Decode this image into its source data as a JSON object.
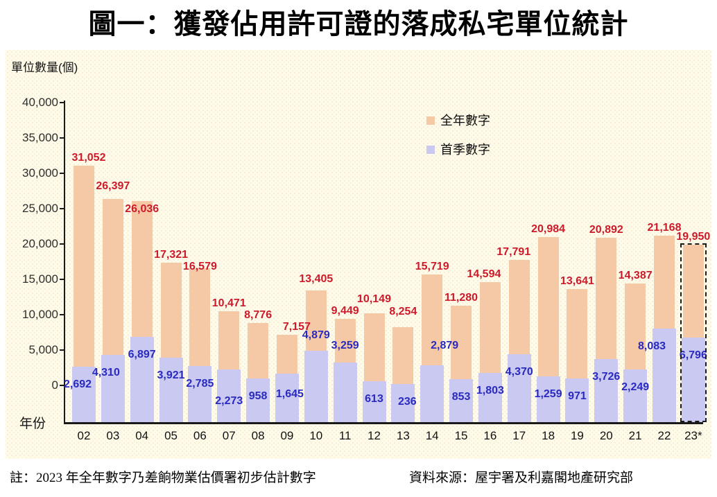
{
  "page": {
    "title": "圖一：獲發佔用許可證的落成私宅單位統計"
  },
  "chart_data": {
    "type": "bar",
    "title": "圖一：獲發佔用許可證的落成私宅單位統計",
    "ylabel": "單位數量(個)",
    "xlabel": "年份",
    "ylim": [
      0,
      40000
    ],
    "ytick_values": [
      0,
      5000,
      10000,
      15000,
      20000,
      25000,
      30000,
      35000,
      40000
    ],
    "grid": false,
    "legend_position": "inside-top-right",
    "categories": [
      "02",
      "03",
      "04",
      "05",
      "06",
      "07",
      "08",
      "09",
      "10",
      "11",
      "12",
      "13",
      "14",
      "15",
      "16",
      "17",
      "18",
      "19",
      "20",
      "21",
      "22",
      "23*"
    ],
    "series": [
      {
        "name": "全年數字",
        "color": "#f5c9a6",
        "label_color": "#cc1a2b",
        "values": [
          31052,
          26397,
          26036,
          17321,
          16579,
          10471,
          8776,
          7157,
          13405,
          9449,
          10149,
          8254,
          15719,
          11280,
          14594,
          17791,
          20984,
          13641,
          20892,
          14387,
          21168,
          19950
        ]
      },
      {
        "name": "首季數字",
        "color": "#c9c9f2",
        "label_color": "#2a2abe",
        "values": [
          2692,
          4310,
          6897,
          3921,
          2785,
          2273,
          958,
          1645,
          4879,
          3259,
          613,
          236,
          2879,
          853,
          1803,
          4370,
          1259,
          971,
          3726,
          2249,
          8083,
          6796
        ]
      }
    ],
    "estimated_bar": {
      "category": "23*",
      "index": 21,
      "style": "dashed-outline"
    },
    "label_offsets": {
      "full_year": {
        "0": [
          7,
          0
        ],
        "1": [
          0,
          -7
        ],
        "2": [
          0,
          23
        ],
        "4": [
          0,
          9
        ],
        "7": [
          14,
          0
        ],
        "8": [
          0,
          -5
        ],
        "10": [
          0,
          -9
        ],
        "11": [
          0,
          -11
        ],
        "14": [
          -9,
          0
        ],
        "15": [
          -8,
          0
        ]
      },
      "first_quarter": {
        "0": [
          -9,
          0
        ],
        "1": [
          -10,
          0
        ],
        "5": [
          0,
          20
        ],
        "7": [
          4,
          4
        ],
        "8": [
          0,
          -48
        ],
        "9": [
          0,
          -50
        ],
        "11": [
          6,
          0
        ],
        "12": [
          18,
          -54
        ],
        "20": [
          -18,
          0
        ]
      }
    },
    "colors": {
      "plot_background": "#fffcec",
      "axis": "#1a1a1a",
      "full_year_bar": "#f5c9a6",
      "first_quarter_bar": "#c9c9f2",
      "full_year_label": "#cc1a2b",
      "first_quarter_label": "#2a2abe"
    }
  },
  "footer": {
    "note": "註：2023 年全年數字乃差餉物業估價署初步估計數字",
    "source": "資料來源：屋宇署及利嘉閣地產研究部"
  }
}
